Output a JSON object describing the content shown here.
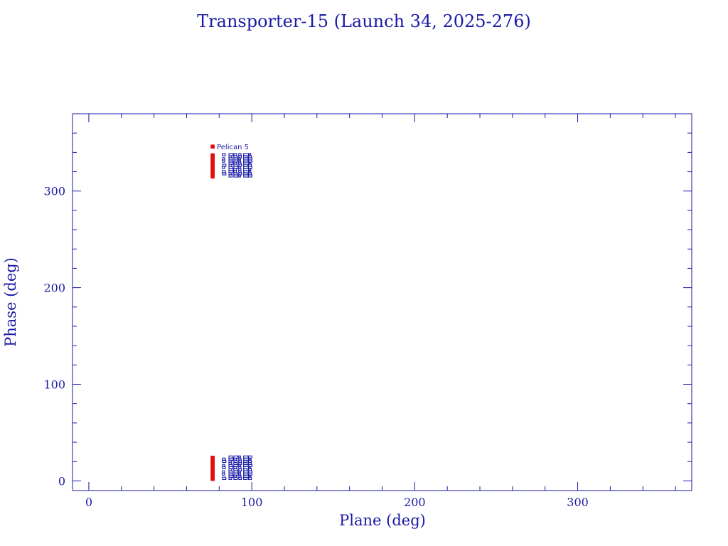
{
  "chart_data": {
    "type": "scatter",
    "title": "Transporter-15 (Launch 34, 2025-276)",
    "xlabel": "Plane (deg)",
    "ylabel": "Phase (deg)",
    "xlim": [
      -10,
      370
    ],
    "ylim": [
      -10,
      380
    ],
    "xticks": [
      0,
      100,
      200,
      300
    ],
    "yticks": [
      0,
      100,
      200,
      300
    ],
    "grid": false,
    "legend": "none",
    "colors": {
      "axes": "#1a1aa6",
      "marker": "#e01010"
    },
    "series": [
      {
        "points": [
          {
            "x": 76,
            "y": 346,
            "label": "Pelican 5"
          },
          {
            "x": 76,
            "y": 337
          },
          {
            "x": 76,
            "y": 335
          },
          {
            "x": 76,
            "y": 333
          },
          {
            "x": 76,
            "y": 331
          },
          {
            "x": 76,
            "y": 329
          },
          {
            "x": 76,
            "y": 327
          },
          {
            "x": 76,
            "y": 325
          },
          {
            "x": 76,
            "y": 323
          },
          {
            "x": 76,
            "y": 321
          },
          {
            "x": 76,
            "y": 319
          },
          {
            "x": 76,
            "y": 317
          },
          {
            "x": 76,
            "y": 315
          },
          {
            "x": 76,
            "y": 24
          },
          {
            "x": 76,
            "y": 22
          },
          {
            "x": 76,
            "y": 20
          },
          {
            "x": 76,
            "y": 18
          },
          {
            "x": 76,
            "y": 16
          },
          {
            "x": 76,
            "y": 14
          },
          {
            "x": 76,
            "y": 12
          },
          {
            "x": 76,
            "y": 10
          },
          {
            "x": 76,
            "y": 8
          },
          {
            "x": 76,
            "y": 6
          },
          {
            "x": 76,
            "y": 4
          },
          {
            "x": 76,
            "y": 2
          }
        ]
      }
    ]
  }
}
